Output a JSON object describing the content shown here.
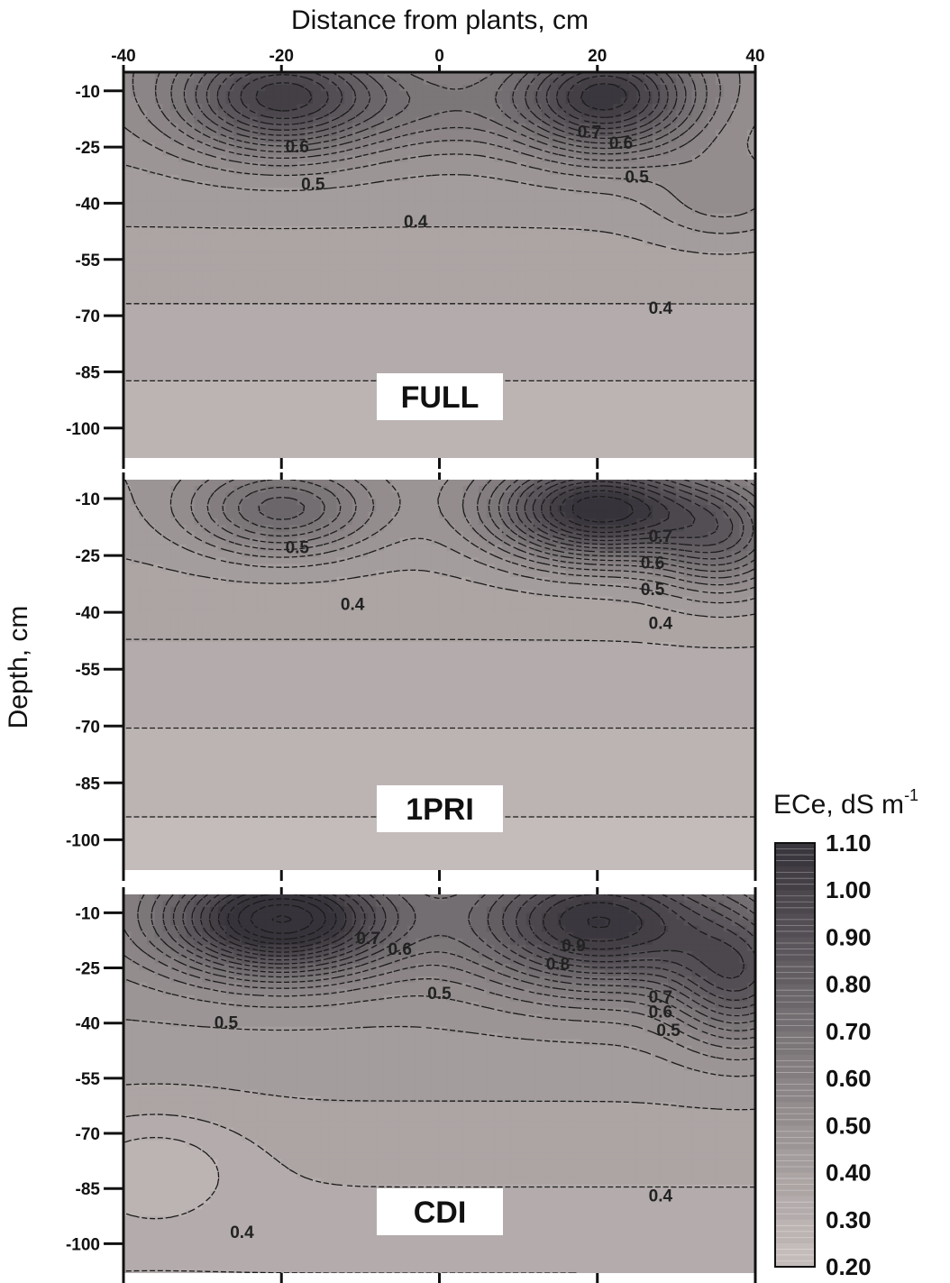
{
  "chart_data": {
    "type": "heatmap",
    "plot_kind": "filled contour",
    "x_axis": {
      "title": "Distance from plants, cm",
      "position": "top",
      "range": [
        -40,
        40
      ],
      "ticks": [
        -40,
        -20,
        0,
        20,
        40
      ],
      "tick_labels": [
        "-40",
        "-20",
        "0",
        "20",
        "40"
      ]
    },
    "y_axis": {
      "title": "Depth, cm",
      "range": [
        -5,
        -108
      ],
      "ticks": [
        -10,
        -25,
        -40,
        -55,
        -70,
        -85,
        -100
      ],
      "tick_labels": [
        "-10",
        "-25",
        "-40",
        "-55",
        "-70",
        "-85",
        "-100"
      ]
    },
    "colorbar": {
      "title_base": "ECe, dS m",
      "title_sup": "-1",
      "range": [
        0.2,
        1.1
      ],
      "ticks": [
        1.1,
        1.0,
        0.9,
        0.8,
        0.7,
        0.6,
        0.5,
        0.4,
        0.3,
        0.2
      ],
      "tick_labels": [
        "1.10",
        "1.00",
        "0.90",
        "0.80",
        "0.70",
        "0.60",
        "0.50",
        "0.40",
        "0.30",
        "0.20"
      ],
      "color_low": "#c8c0be",
      "color_high": "#37333a"
    },
    "contour_step": 0.05,
    "panels": [
      {
        "label": "FULL",
        "contour_labels": [
          {
            "text": "0.6",
            "x": -18,
            "y": -25
          },
          {
            "text": "0.5",
            "x": -16,
            "y": -35
          },
          {
            "text": "0.4",
            "x": -3,
            "y": -45
          },
          {
            "text": "0.7",
            "x": 19,
            "y": -21
          },
          {
            "text": "0.6",
            "x": 23,
            "y": -24
          },
          {
            "text": "0.5",
            "x": 25,
            "y": -33
          },
          {
            "text": "0.4",
            "x": 28,
            "y": -68
          }
        ],
        "field": {
          "base": 0.25,
          "depth_gradient": 0.25,
          "hotspots": [
            {
              "x": -20,
              "y": -12,
              "amp": 0.55,
              "sx": 9,
              "sy": 10
            },
            {
              "x": 21,
              "y": -12,
              "amp": 0.6,
              "sx": 8,
              "sy": 10
            },
            {
              "x": 36,
              "y": -38,
              "amp": 0.12,
              "sx": 6,
              "sy": 8
            },
            {
              "x": 0,
              "y": -14,
              "amp": 0.12,
              "sx": 8,
              "sy": 8
            }
          ]
        }
      },
      {
        "label": "1PRI",
        "contour_labels": [
          {
            "text": "0.5",
            "x": -18,
            "y": -23
          },
          {
            "text": "0.4",
            "x": -11,
            "y": -38
          },
          {
            "text": "0.7",
            "x": 28,
            "y": -20
          },
          {
            "text": "0.6",
            "x": 27,
            "y": -27
          },
          {
            "text": "0.5",
            "x": 27,
            "y": -34
          },
          {
            "text": "0.4",
            "x": 28,
            "y": -43
          }
        ],
        "field": {
          "base": 0.22,
          "depth_gradient": 0.22,
          "hotspots": [
            {
              "x": -20,
              "y": -13,
              "amp": 0.35,
              "sx": 8,
              "sy": 8
            },
            {
              "x": 20,
              "y": -13,
              "amp": 0.72,
              "sx": 9,
              "sy": 9
            },
            {
              "x": 36,
              "y": -20,
              "amp": 0.35,
              "sx": 6,
              "sy": 10
            }
          ]
        }
      },
      {
        "label": "CDI",
        "contour_labels": [
          {
            "text": "0.7",
            "x": -9,
            "y": -17
          },
          {
            "text": "0.6",
            "x": -5,
            "y": -20
          },
          {
            "text": "0.5",
            "x": 0,
            "y": -32
          },
          {
            "text": "0.5",
            "x": -27,
            "y": -40
          },
          {
            "text": "0.9",
            "x": 17,
            "y": -19
          },
          {
            "text": "0.8",
            "x": 15,
            "y": -24
          },
          {
            "text": "0.7",
            "x": 28,
            "y": -33
          },
          {
            "text": "0.6",
            "x": 28,
            "y": -37
          },
          {
            "text": "0.5",
            "x": 29,
            "y": -42
          },
          {
            "text": "0.4",
            "x": 28,
            "y": -87
          },
          {
            "text": "0.4",
            "x": -25,
            "y": -97
          }
        ],
        "field": {
          "base": 0.3,
          "depth_gradient": 0.22,
          "hotspots": [
            {
              "x": -20,
              "y": -12,
              "amp": 0.75,
              "sx": 10,
              "sy": 10
            },
            {
              "x": 20,
              "y": -13,
              "amp": 0.6,
              "sx": 11,
              "sy": 12
            },
            {
              "x": 38,
              "y": -28,
              "amp": 0.4,
              "sx": 6,
              "sy": 12
            },
            {
              "x": -36,
              "y": -78,
              "amp": -0.1,
              "sx": 8,
              "sy": 10
            }
          ]
        }
      }
    ]
  }
}
